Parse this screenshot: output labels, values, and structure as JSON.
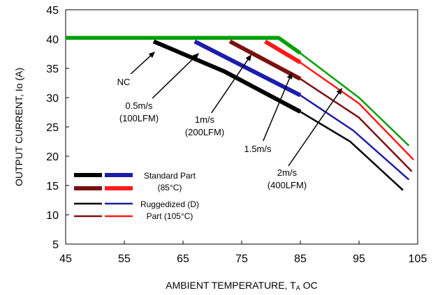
{
  "chart_data": {
    "type": "line",
    "xlabel": "AMBIENT TEMPERATURE, T",
    "xlabel_sub": "A",
    "xlabel_unit": "OC",
    "ylabel": "OUTPUT CURRENT, Io  (A)",
    "xlim": [
      45,
      105
    ],
    "ylim": [
      5,
      45
    ],
    "xticks": [
      45,
      55,
      65,
      75,
      85,
      95,
      105
    ],
    "yticks": [
      5,
      10,
      15,
      20,
      25,
      30,
      35,
      40,
      45
    ],
    "grid": false,
    "colors": {
      "nc": "#00a000",
      "s05": "#000000",
      "s1": "#1c1caa",
      "s15": "#7a1010",
      "s2": "#ff1a1a"
    },
    "series": [
      {
        "key": "nc",
        "color": "#00a000",
        "style": "standard",
        "points": [
          [
            45,
            40.2
          ],
          [
            81.3,
            40.2
          ],
          [
            85,
            37.6
          ]
        ]
      },
      {
        "key": "nc",
        "color": "#00a000",
        "style": "rugged",
        "points": [
          [
            85,
            37.6
          ],
          [
            95,
            30
          ],
          [
            103.5,
            21.8
          ]
        ]
      },
      {
        "key": "s05",
        "color": "#000000",
        "style": "standard",
        "points": [
          [
            60,
            39.6
          ],
          [
            72,
            34.5
          ],
          [
            85,
            27.6
          ]
        ]
      },
      {
        "key": "s05",
        "color": "#000000",
        "style": "rugged",
        "points": [
          [
            85,
            27.6
          ],
          [
            93.5,
            22.5
          ],
          [
            102.5,
            14.2
          ]
        ]
      },
      {
        "key": "s1",
        "color": "#1c1caa",
        "style": "standard",
        "points": [
          [
            67,
            39.6
          ],
          [
            85,
            30.4
          ]
        ]
      },
      {
        "key": "s1",
        "color": "#1c1caa",
        "style": "rugged",
        "points": [
          [
            85,
            30.4
          ],
          [
            94,
            24.4
          ],
          [
            103.5,
            16
          ]
        ]
      },
      {
        "key": "s15",
        "color": "#7a1010",
        "style": "standard",
        "points": [
          [
            73,
            39.6
          ],
          [
            85,
            33.2
          ]
        ]
      },
      {
        "key": "s15",
        "color": "#7a1010",
        "style": "rugged",
        "points": [
          [
            85,
            33.2
          ],
          [
            95,
            26.6
          ],
          [
            104,
            17.4
          ]
        ]
      },
      {
        "key": "s2",
        "color": "#ff1a1a",
        "style": "standard",
        "points": [
          [
            79,
            39.6
          ],
          [
            85,
            36
          ]
        ]
      },
      {
        "key": "s2",
        "color": "#ff1a1a",
        "style": "rugged",
        "points": [
          [
            85,
            36
          ],
          [
            95,
            29
          ],
          [
            104.3,
            19.4
          ]
        ]
      }
    ],
    "annotations": [
      {
        "key": "nc",
        "lines": [
          "NC"
        ]
      },
      {
        "key": "s05",
        "lines": [
          "0.5m/s",
          "(100LFM)"
        ]
      },
      {
        "key": "s1",
        "lines": [
          "1m/s",
          "(200LFM)"
        ]
      },
      {
        "key": "s15",
        "lines": [
          "1.5m/s"
        ]
      },
      {
        "key": "s2",
        "lines": [
          "2m/s",
          "(400LFM)"
        ]
      }
    ],
    "legend": {
      "placement": "bottom-left",
      "entries": [
        {
          "key": "standard",
          "lines": [
            "Standard Part",
            "(85°C)"
          ]
        },
        {
          "key": "rugged",
          "lines": [
            "Ruggedized (D)",
            "Part (105°C)"
          ]
        }
      ]
    }
  }
}
